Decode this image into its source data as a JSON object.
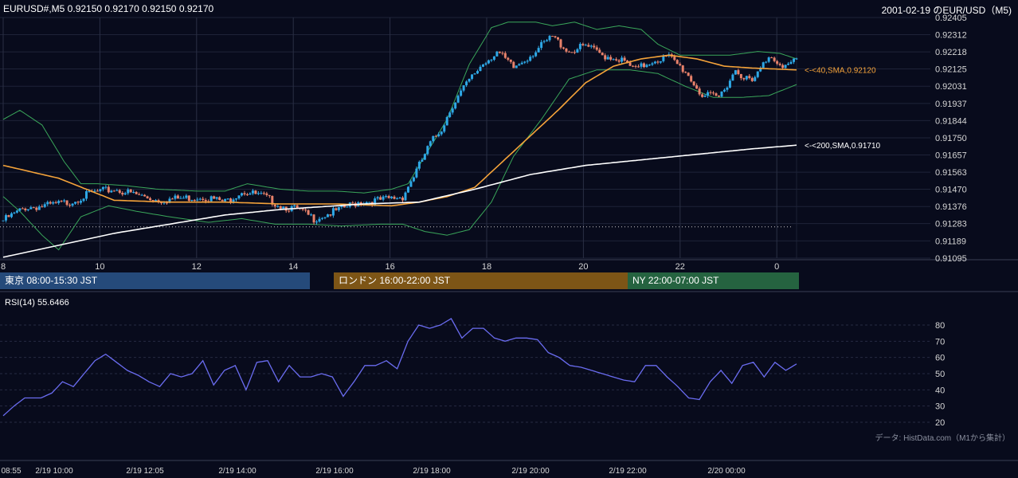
{
  "header": {
    "symbol_info": "EURUSD#,M5 0.92150 0.92170 0.92150 0.92170",
    "title_right": "2001-02-19 のEUR/USD（M5)"
  },
  "sessions": [
    {
      "label": "東京 08:00-15:30 JST",
      "color": "#254a7a"
    },
    {
      "label": "ロンドン 16:00-22:00 JST",
      "color": "#7d5516"
    },
    {
      "label": "NY 22:00-07:00 JST",
      "color": "#256340"
    }
  ],
  "rsi_title": "RSI(14) 55.6466",
  "credit": "データ: HistData.com（M1から集計）",
  "colors": {
    "up": "#2ea8e6",
    "down": "#e8826b",
    "sma40": "#f5a33a",
    "sma200": "#ffffff",
    "bands": "#3aa65a",
    "rsi": "#6a6cf0"
  },
  "chart_data": [
    {
      "type": "candlestick",
      "ylim": [
        0.91095,
        0.92405
      ],
      "price_ticks": [
        "0.92405",
        "0.92312",
        "0.92218",
        "0.92125",
        "0.92031",
        "0.91937",
        "0.91844",
        "0.91750",
        "0.91657",
        "0.91563",
        "0.91470",
        "0.91376",
        "0.91283",
        "0.91189",
        "0.91095"
      ],
      "hour_ticks": [
        "8",
        "10",
        "12",
        "14",
        "16",
        "18",
        "20",
        "22",
        "0"
      ],
      "reference_level": 0.91265,
      "sma40_label": "<-<40,SMA,0.92120",
      "sma200_label": "<-<200,SMA,0.91710",
      "candles_close_anchors": [
        [
          0,
          0.913
        ],
        [
          8,
          0.9137
        ],
        [
          16,
          0.9138
        ],
        [
          24,
          0.914
        ],
        [
          32,
          0.9145
        ],
        [
          40,
          0.9147
        ],
        [
          48,
          0.9144
        ],
        [
          56,
          0.9141
        ],
        [
          64,
          0.9142
        ],
        [
          72,
          0.9143
        ],
        [
          80,
          0.914
        ],
        [
          86,
          0.9146
        ],
        [
          94,
          0.9143
        ],
        [
          100,
          0.9138
        ],
        [
          106,
          0.9136
        ],
        [
          112,
          0.9131
        ],
        [
          120,
          0.9135
        ],
        [
          128,
          0.914
        ],
        [
          136,
          0.9141
        ],
        [
          144,
          0.9143
        ],
        [
          150,
          0.916
        ],
        [
          154,
          0.9172
        ],
        [
          158,
          0.918
        ],
        [
          162,
          0.9193
        ],
        [
          166,
          0.9202
        ],
        [
          172,
          0.9214
        ],
        [
          178,
          0.9222
        ],
        [
          184,
          0.9213
        ],
        [
          190,
          0.922
        ],
        [
          198,
          0.923
        ],
        [
          204,
          0.9222
        ],
        [
          210,
          0.9225
        ],
        [
          216,
          0.922
        ],
        [
          222,
          0.9218
        ],
        [
          228,
          0.9212
        ],
        [
          234,
          0.9217
        ],
        [
          240,
          0.9219
        ],
        [
          246,
          0.9211
        ],
        [
          252,
          0.9198
        ],
        [
          258,
          0.9197
        ],
        [
          264,
          0.9212
        ],
        [
          270,
          0.9205
        ],
        [
          276,
          0.922
        ],
        [
          282,
          0.9214
        ],
        [
          286,
          0.9217
        ]
      ],
      "sma40_anchors": [
        [
          0,
          0.916
        ],
        [
          20,
          0.9153
        ],
        [
          40,
          0.9141
        ],
        [
          60,
          0.914
        ],
        [
          80,
          0.914
        ],
        [
          100,
          0.9139
        ],
        [
          120,
          0.9139
        ],
        [
          140,
          0.9138
        ],
        [
          150,
          0.914
        ],
        [
          160,
          0.9143
        ],
        [
          170,
          0.9148
        ],
        [
          180,
          0.9162
        ],
        [
          190,
          0.9176
        ],
        [
          200,
          0.919
        ],
        [
          210,
          0.9205
        ],
        [
          220,
          0.9214
        ],
        [
          230,
          0.9218
        ],
        [
          240,
          0.922
        ],
        [
          250,
          0.9218
        ],
        [
          260,
          0.9214
        ],
        [
          270,
          0.9213
        ],
        [
          286,
          0.9212
        ]
      ],
      "sma200_anchors": [
        [
          0,
          0.911
        ],
        [
          40,
          0.9123
        ],
        [
          80,
          0.9133
        ],
        [
          100,
          0.9136
        ],
        [
          130,
          0.9139
        ],
        [
          150,
          0.914
        ],
        [
          170,
          0.9147
        ],
        [
          190,
          0.9155
        ],
        [
          210,
          0.916
        ],
        [
          230,
          0.9163
        ],
        [
          250,
          0.9166
        ],
        [
          270,
          0.9169
        ],
        [
          286,
          0.9171
        ]
      ],
      "upper_band_anchors": [
        [
          0,
          0.9185
        ],
        [
          6,
          0.919
        ],
        [
          14,
          0.9182
        ],
        [
          22,
          0.9162
        ],
        [
          28,
          0.915
        ],
        [
          34,
          0.915
        ],
        [
          44,
          0.9149
        ],
        [
          56,
          0.9147
        ],
        [
          70,
          0.9146
        ],
        [
          80,
          0.9146
        ],
        [
          88,
          0.915
        ],
        [
          100,
          0.9147
        ],
        [
          110,
          0.9146
        ],
        [
          120,
          0.9146
        ],
        [
          130,
          0.9145
        ],
        [
          140,
          0.9147
        ],
        [
          146,
          0.915
        ],
        [
          152,
          0.9165
        ],
        [
          160,
          0.9185
        ],
        [
          168,
          0.9215
        ],
        [
          176,
          0.9235
        ],
        [
          182,
          0.9238
        ],
        [
          192,
          0.9238
        ],
        [
          198,
          0.9236
        ],
        [
          206,
          0.9238
        ],
        [
          214,
          0.9234
        ],
        [
          222,
          0.9236
        ],
        [
          230,
          0.9234
        ],
        [
          236,
          0.9226
        ],
        [
          244,
          0.922
        ],
        [
          252,
          0.922
        ],
        [
          262,
          0.922
        ],
        [
          272,
          0.9222
        ],
        [
          280,
          0.9221
        ],
        [
          286,
          0.9218
        ]
      ],
      "lower_band_anchors": [
        [
          0,
          0.9143
        ],
        [
          6,
          0.9135
        ],
        [
          14,
          0.9122
        ],
        [
          20,
          0.9114
        ],
        [
          28,
          0.9132
        ],
        [
          38,
          0.9138
        ],
        [
          48,
          0.9135
        ],
        [
          60,
          0.9132
        ],
        [
          74,
          0.9129
        ],
        [
          86,
          0.9131
        ],
        [
          98,
          0.9128
        ],
        [
          110,
          0.9128
        ],
        [
          122,
          0.9127
        ],
        [
          136,
          0.9128
        ],
        [
          144,
          0.9128
        ],
        [
          152,
          0.9124
        ],
        [
          160,
          0.9122
        ],
        [
          168,
          0.9125
        ],
        [
          176,
          0.914
        ],
        [
          184,
          0.9165
        ],
        [
          194,
          0.9185
        ],
        [
          204,
          0.9207
        ],
        [
          214,
          0.9212
        ],
        [
          226,
          0.9212
        ],
        [
          236,
          0.921
        ],
        [
          246,
          0.9203
        ],
        [
          256,
          0.9197
        ],
        [
          266,
          0.9197
        ],
        [
          276,
          0.9198
        ],
        [
          286,
          0.9204
        ]
      ]
    },
    {
      "type": "line",
      "ylim": [
        20,
        85
      ],
      "rsi_ticks": [
        80,
        70,
        60,
        50,
        40,
        30,
        20
      ],
      "x_ticks": [
        "08:55",
        "2/19 10:00",
        "2/19 12:05",
        "2/19 14:00",
        "2/19 16:00",
        "2/19 18:00",
        "2/19 20:00",
        "2/19 22:00",
        "2/20 00:00"
      ],
      "rsi_anchors": [
        [
          0,
          24
        ],
        [
          4,
          30
        ],
        [
          8,
          35
        ],
        [
          14,
          35
        ],
        [
          18,
          38
        ],
        [
          22,
          45
        ],
        [
          26,
          42
        ],
        [
          30,
          50
        ],
        [
          34,
          58
        ],
        [
          38,
          62
        ],
        [
          42,
          57
        ],
        [
          46,
          52
        ],
        [
          50,
          49
        ],
        [
          54,
          45
        ],
        [
          58,
          42
        ],
        [
          62,
          50
        ],
        [
          66,
          48
        ],
        [
          70,
          50
        ],
        [
          74,
          58
        ],
        [
          78,
          43
        ],
        [
          82,
          52
        ],
        [
          86,
          55
        ],
        [
          90,
          40
        ],
        [
          94,
          57
        ],
        [
          98,
          58
        ],
        [
          102,
          45
        ],
        [
          106,
          55
        ],
        [
          110,
          48
        ],
        [
          114,
          48
        ],
        [
          118,
          50
        ],
        [
          122,
          48
        ],
        [
          126,
          36
        ],
        [
          130,
          45
        ],
        [
          134,
          55
        ],
        [
          138,
          55
        ],
        [
          142,
          58
        ],
        [
          146,
          53
        ],
        [
          150,
          70
        ],
        [
          154,
          80
        ],
        [
          158,
          78
        ],
        [
          162,
          80
        ],
        [
          166,
          84
        ],
        [
          170,
          72
        ],
        [
          174,
          78
        ],
        [
          178,
          78
        ],
        [
          182,
          72
        ],
        [
          186,
          70
        ],
        [
          190,
          72
        ],
        [
          194,
          72
        ],
        [
          198,
          71
        ],
        [
          202,
          63
        ],
        [
          206,
          60
        ],
        [
          210,
          55
        ],
        [
          214,
          54
        ],
        [
          218,
          52
        ],
        [
          222,
          50
        ],
        [
          226,
          48
        ],
        [
          230,
          46
        ],
        [
          234,
          45
        ],
        [
          238,
          55
        ],
        [
          242,
          55
        ],
        [
          246,
          48
        ],
        [
          250,
          42
        ],
        [
          254,
          35
        ],
        [
          258,
          34
        ],
        [
          262,
          45
        ],
        [
          266,
          52
        ],
        [
          270,
          44
        ],
        [
          274,
          55
        ],
        [
          278,
          57
        ],
        [
          282,
          48
        ],
        [
          286,
          57
        ],
        [
          290,
          52
        ],
        [
          294,
          56
        ]
      ]
    }
  ]
}
